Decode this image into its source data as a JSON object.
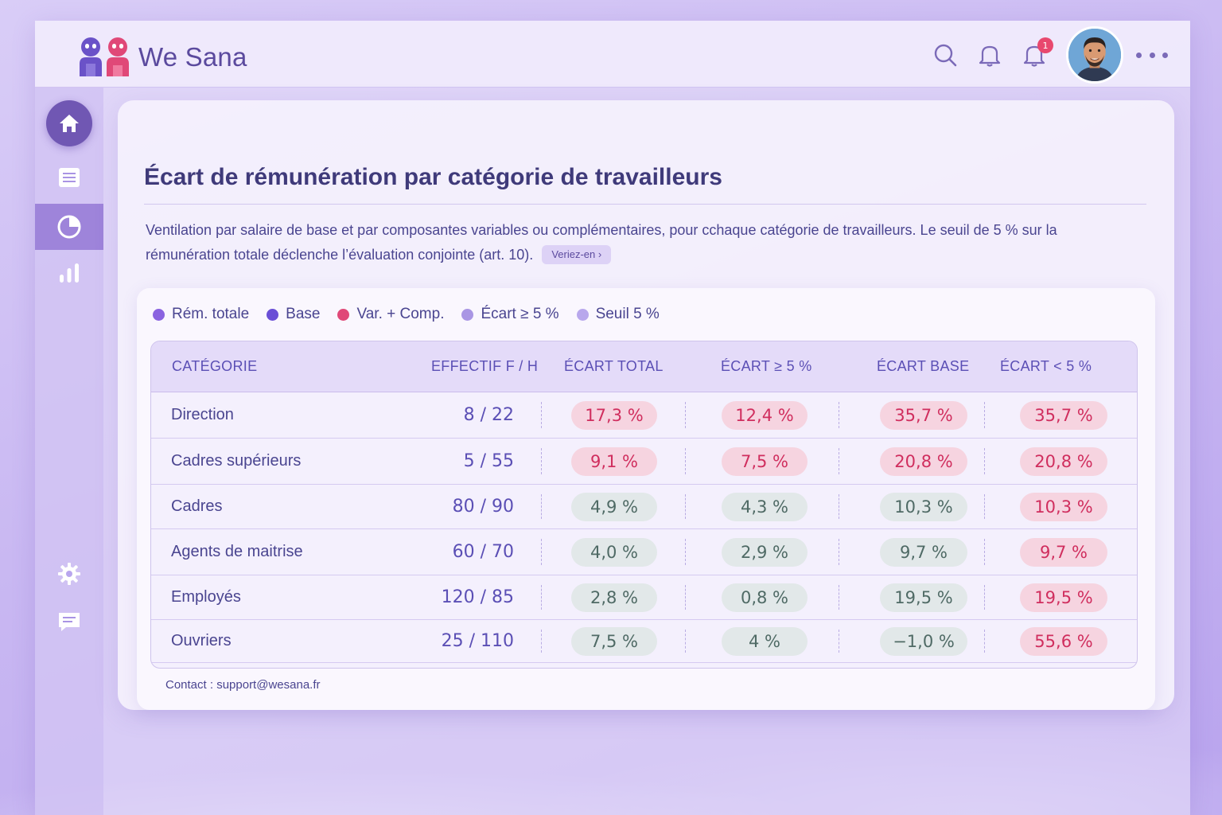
{
  "app": {
    "brand": "We Sana",
    "notification_count": "1"
  },
  "card": {
    "title": "Écart de rémunération par catégorie de travailleurs",
    "description": "Ventilation par salaire de base et par composantes variables ou complémentaires, pour cchaque catégorie de travailleurs. Le seuil de 5 % sur la rémunération totale déclenche l’évaluation conjointe (art. 10).",
    "verify_label": "Veriez-en ›"
  },
  "legend": [
    {
      "label": "Rém. totale",
      "color": "#8a63e0"
    },
    {
      "label": "Base",
      "color": "#6a4fd6"
    },
    {
      "label": "Var. + Comp.",
      "color": "#e04878"
    },
    {
      "label": "Écart ≥ 5 %",
      "color": "#a996e4"
    },
    {
      "label": "Seuil 5 %",
      "color": "#b8a7ec"
    }
  ],
  "table": {
    "headers": {
      "categorie": "CATÉGORIE",
      "effectif": "EFFECTIF F / H",
      "ecart_total": "ÉCART TOTAL",
      "ecart_ge5": "ÉCART ≥ 5 %",
      "ecart_base": "ÉCART BASE",
      "ecart_lt5": "ÉCART < 5 %"
    },
    "rows": [
      {
        "categorie": "Direction",
        "effectif": "8 / 22",
        "ecart_total": "17,3 %",
        "ecart_ge5": "12,4 %",
        "ecart_base": "35,7 %",
        "ecart_lt5": "35,7 %",
        "tones": [
          "red",
          "red",
          "red",
          "red"
        ]
      },
      {
        "categorie": "Cadres supérieurs",
        "effectif": "5 / 55",
        "ecart_total": "9,1 %",
        "ecart_ge5": "7,5 %",
        "ecart_base": "20,8 %",
        "ecart_lt5": "20,8 %",
        "tones": [
          "red",
          "red",
          "red",
          "red"
        ]
      },
      {
        "categorie": "Cadres",
        "effectif": "80 / 90",
        "ecart_total": "4,9 %",
        "ecart_ge5": "4,3 %",
        "ecart_base": "10,3 %",
        "ecart_lt5": "10,3 %",
        "tones": [
          "grey",
          "grey",
          "grey",
          "red"
        ]
      },
      {
        "categorie": "Agents de maitrise",
        "effectif": "60 / 70",
        "ecart_total": "4,0 %",
        "ecart_ge5": "2,9 %",
        "ecart_base": "9,7 %",
        "ecart_lt5": "9,7 %",
        "tones": [
          "grey",
          "grey",
          "grey",
          "red"
        ]
      },
      {
        "categorie": "Employés",
        "effectif": "120 / 85",
        "ecart_total": "2,8 %",
        "ecart_ge5": "0,8 %",
        "ecart_base": "19,5 %",
        "ecart_lt5": "19,5 %",
        "tones": [
          "grey",
          "grey",
          "grey",
          "red"
        ]
      },
      {
        "categorie": "Ouvriers",
        "effectif": "25 / 110",
        "ecart_total": "7,5 %",
        "ecart_ge5": "4 %",
        "ecart_base": "−1,0 %",
        "ecart_lt5": "55,6 %",
        "tones": [
          "grey",
          "grey",
          "grey",
          "red"
        ]
      }
    ]
  },
  "contact": "Contact : support@wesana.fr",
  "icons": [
    "home-icon",
    "list-icon",
    "pie-chart-icon",
    "bar-chart-icon",
    "gear-icon",
    "chat-icon",
    "search-icon",
    "bell-icon",
    "bell-notification-icon",
    "more-icon"
  ]
}
